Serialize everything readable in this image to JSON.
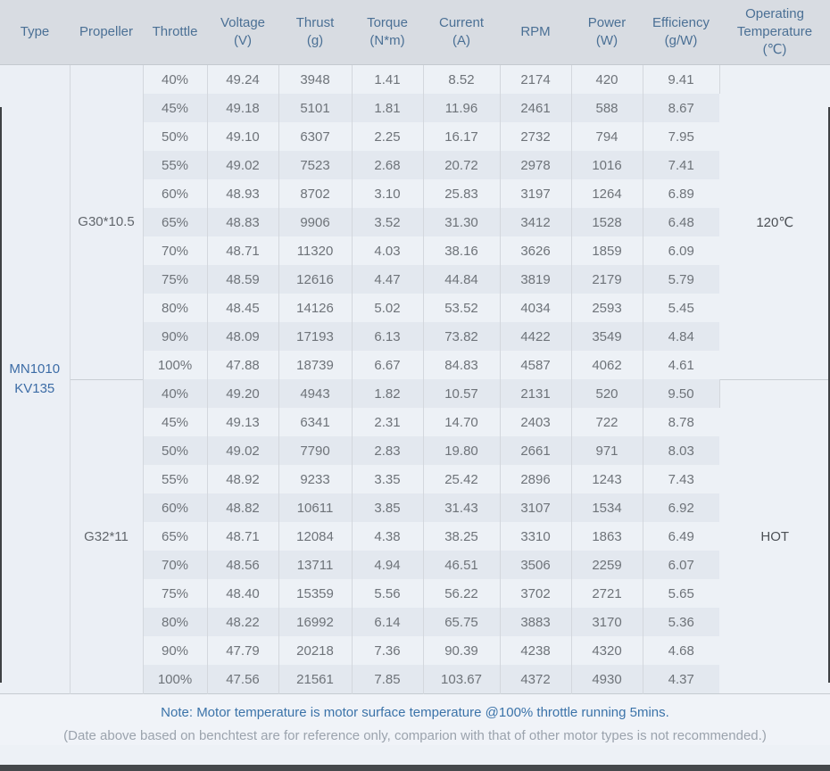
{
  "header": {
    "columns": [
      {
        "id": "type",
        "label": "Type"
      },
      {
        "id": "propeller",
        "label": "Propeller"
      },
      {
        "id": "throttle",
        "label": "Throttle"
      },
      {
        "id": "voltage",
        "label": "Voltage\n(V)"
      },
      {
        "id": "thrust",
        "label": "Thrust\n(g)"
      },
      {
        "id": "torque",
        "label": "Torque\n(N*m)"
      },
      {
        "id": "current",
        "label": "Current\n(A)"
      },
      {
        "id": "rpm",
        "label": "RPM"
      },
      {
        "id": "power",
        "label": "Power\n(W)"
      },
      {
        "id": "efficiency",
        "label": "Efficiency\n(g/W)"
      },
      {
        "id": "temperature",
        "label": "Operating\nTemperature\n(℃)"
      }
    ]
  },
  "table": {
    "type_label": "MN1010\nKV135",
    "blocks": [
      {
        "propeller": "G30*10.5",
        "operating_temperature": "120℃",
        "rows": [
          {
            "throttle": "40%",
            "voltage": "49.24",
            "thrust": "3948",
            "torque": "1.41",
            "current": "8.52",
            "rpm": "2174",
            "power": "420",
            "efficiency": "9.41"
          },
          {
            "throttle": "45%",
            "voltage": "49.18",
            "thrust": "5101",
            "torque": "1.81",
            "current": "11.96",
            "rpm": "2461",
            "power": "588",
            "efficiency": "8.67"
          },
          {
            "throttle": "50%",
            "voltage": "49.10",
            "thrust": "6307",
            "torque": "2.25",
            "current": "16.17",
            "rpm": "2732",
            "power": "794",
            "efficiency": "7.95"
          },
          {
            "throttle": "55%",
            "voltage": "49.02",
            "thrust": "7523",
            "torque": "2.68",
            "current": "20.72",
            "rpm": "2978",
            "power": "1016",
            "efficiency": "7.41"
          },
          {
            "throttle": "60%",
            "voltage": "48.93",
            "thrust": "8702",
            "torque": "3.10",
            "current": "25.83",
            "rpm": "3197",
            "power": "1264",
            "efficiency": "6.89"
          },
          {
            "throttle": "65%",
            "voltage": "48.83",
            "thrust": "9906",
            "torque": "3.52",
            "current": "31.30",
            "rpm": "3412",
            "power": "1528",
            "efficiency": "6.48"
          },
          {
            "throttle": "70%",
            "voltage": "48.71",
            "thrust": "11320",
            "torque": "4.03",
            "current": "38.16",
            "rpm": "3626",
            "power": "1859",
            "efficiency": "6.09"
          },
          {
            "throttle": "75%",
            "voltage": "48.59",
            "thrust": "12616",
            "torque": "4.47",
            "current": "44.84",
            "rpm": "3819",
            "power": "2179",
            "efficiency": "5.79"
          },
          {
            "throttle": "80%",
            "voltage": "48.45",
            "thrust": "14126",
            "torque": "5.02",
            "current": "53.52",
            "rpm": "4034",
            "power": "2593",
            "efficiency": "5.45"
          },
          {
            "throttle": "90%",
            "voltage": "48.09",
            "thrust": "17193",
            "torque": "6.13",
            "current": "73.82",
            "rpm": "4422",
            "power": "3549",
            "efficiency": "4.84"
          },
          {
            "throttle": "100%",
            "voltage": "47.88",
            "thrust": "18739",
            "torque": "6.67",
            "current": "84.83",
            "rpm": "4587",
            "power": "4062",
            "efficiency": "4.61"
          }
        ]
      },
      {
        "propeller": "G32*11",
        "operating_temperature": "HOT",
        "rows": [
          {
            "throttle": "40%",
            "voltage": "49.20",
            "thrust": "4943",
            "torque": "1.82",
            "current": "10.57",
            "rpm": "2131",
            "power": "520",
            "efficiency": "9.50"
          },
          {
            "throttle": "45%",
            "voltage": "49.13",
            "thrust": "6341",
            "torque": "2.31",
            "current": "14.70",
            "rpm": "2403",
            "power": "722",
            "efficiency": "8.78"
          },
          {
            "throttle": "50%",
            "voltage": "49.02",
            "thrust": "7790",
            "torque": "2.83",
            "current": "19.80",
            "rpm": "2661",
            "power": "971",
            "efficiency": "8.03"
          },
          {
            "throttle": "55%",
            "voltage": "48.92",
            "thrust": "9233",
            "torque": "3.35",
            "current": "25.42",
            "rpm": "2896",
            "power": "1243",
            "efficiency": "7.43"
          },
          {
            "throttle": "60%",
            "voltage": "48.82",
            "thrust": "10611",
            "torque": "3.85",
            "current": "31.43",
            "rpm": "3107",
            "power": "1534",
            "efficiency": "6.92"
          },
          {
            "throttle": "65%",
            "voltage": "48.71",
            "thrust": "12084",
            "torque": "4.38",
            "current": "38.25",
            "rpm": "3310",
            "power": "1863",
            "efficiency": "6.49"
          },
          {
            "throttle": "70%",
            "voltage": "48.56",
            "thrust": "13711",
            "torque": "4.94",
            "current": "46.51",
            "rpm": "3506",
            "power": "2259",
            "efficiency": "6.07"
          },
          {
            "throttle": "75%",
            "voltage": "48.40",
            "thrust": "15359",
            "torque": "5.56",
            "current": "56.22",
            "rpm": "3702",
            "power": "2721",
            "efficiency": "5.65"
          },
          {
            "throttle": "80%",
            "voltage": "48.22",
            "thrust": "16992",
            "torque": "6.14",
            "current": "65.75",
            "rpm": "3883",
            "power": "3170",
            "efficiency": "5.36"
          },
          {
            "throttle": "90%",
            "voltage": "47.79",
            "thrust": "20218",
            "torque": "7.36",
            "current": "90.39",
            "rpm": "4238",
            "power": "4320",
            "efficiency": "4.68"
          },
          {
            "throttle": "100%",
            "voltage": "47.56",
            "thrust": "21561",
            "torque": "7.85",
            "current": "103.67",
            "rpm": "4372",
            "power": "4930",
            "efficiency": "4.37"
          }
        ]
      }
    ]
  },
  "footer": {
    "note": "Note: Motor temperature is motor surface temperature @100% throttle running 5mins.",
    "disclaimer": "(Date above based on benchtest are for reference only, comparion with that of other motor types is not recommended.)"
  },
  "colors": {
    "header_bg": "#d8dce2",
    "header_text": "#4b7095",
    "row_light": "#edf1f6",
    "row_striped": "#e3e8ef",
    "type_text_blue": "#3c6ca6",
    "body_text": "#6e7379",
    "note_blue": "#3b73a9",
    "note_gray": "#9ba3ad",
    "bottom_bar": "#45484b"
  }
}
